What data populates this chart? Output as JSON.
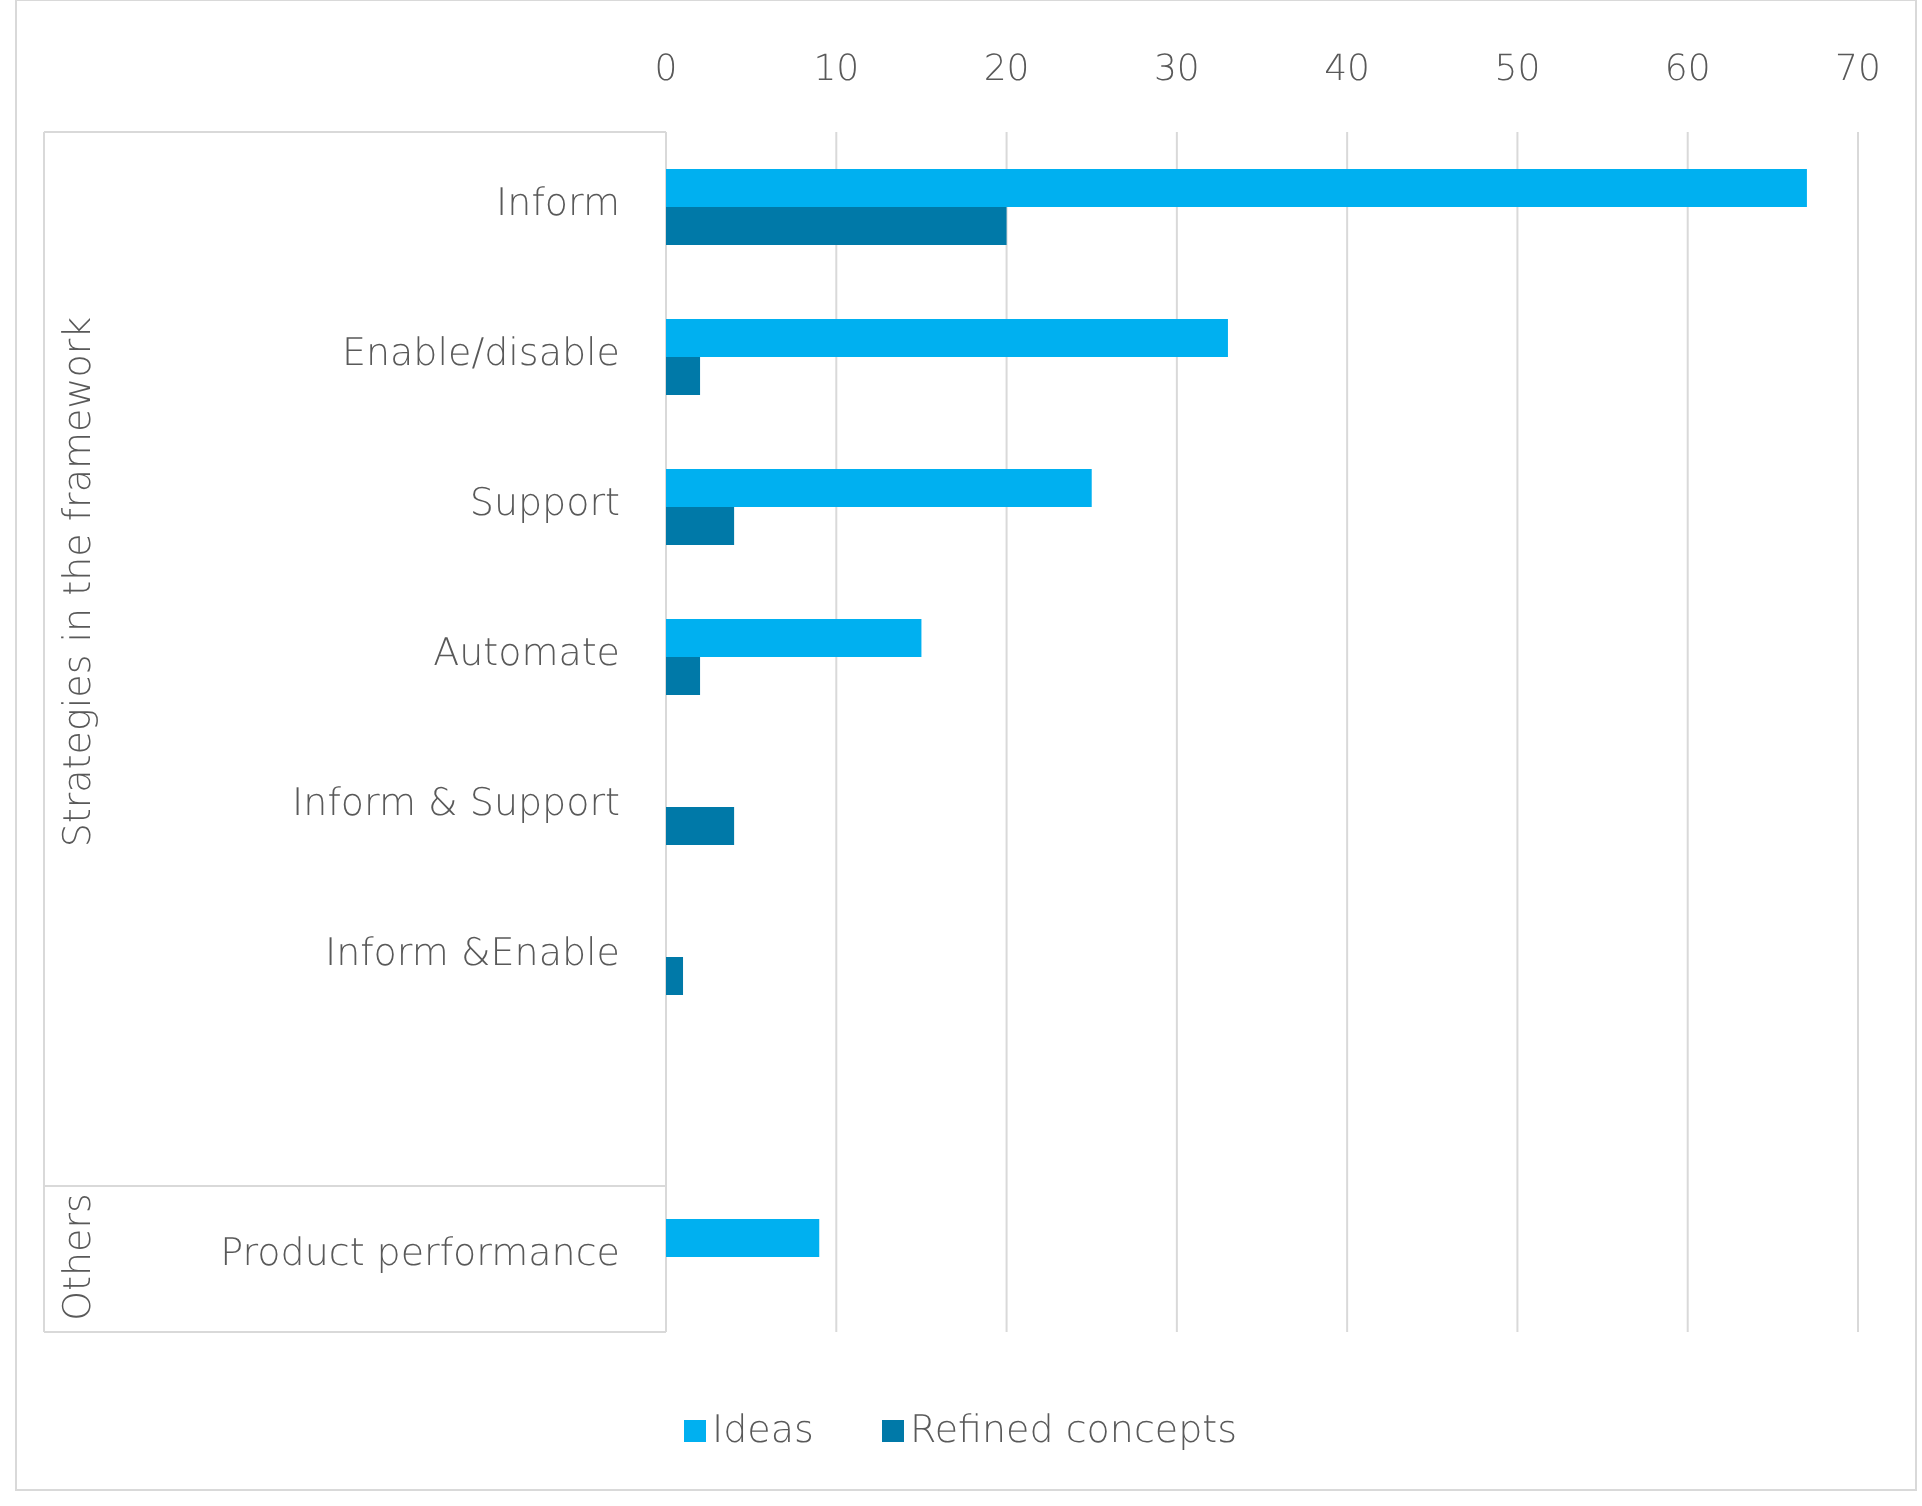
{
  "chart_data": {
    "type": "bar",
    "orientation": "horizontal",
    "categories": [
      "Inform",
      "Enable/disable",
      "Support",
      "Automate",
      "Inform & Support",
      "Inform &Enable",
      null,
      "Product performance"
    ],
    "series": [
      {
        "name": "Ideas",
        "color": "#00b0f0",
        "values": [
          67,
          33,
          25,
          15,
          null,
          null,
          null,
          9
        ]
      },
      {
        "name": "Refined concepts",
        "color": "#0079a8",
        "values": [
          20,
          2,
          4,
          2,
          4,
          1,
          null,
          null
        ]
      }
    ],
    "xlim": [
      0,
      70
    ],
    "xticks": [
      0,
      10,
      20,
      30,
      40,
      50,
      60,
      70
    ],
    "grid": "x",
    "legend": "bottom",
    "annotations": [
      "Strategies in the framework",
      "Others"
    ]
  }
}
